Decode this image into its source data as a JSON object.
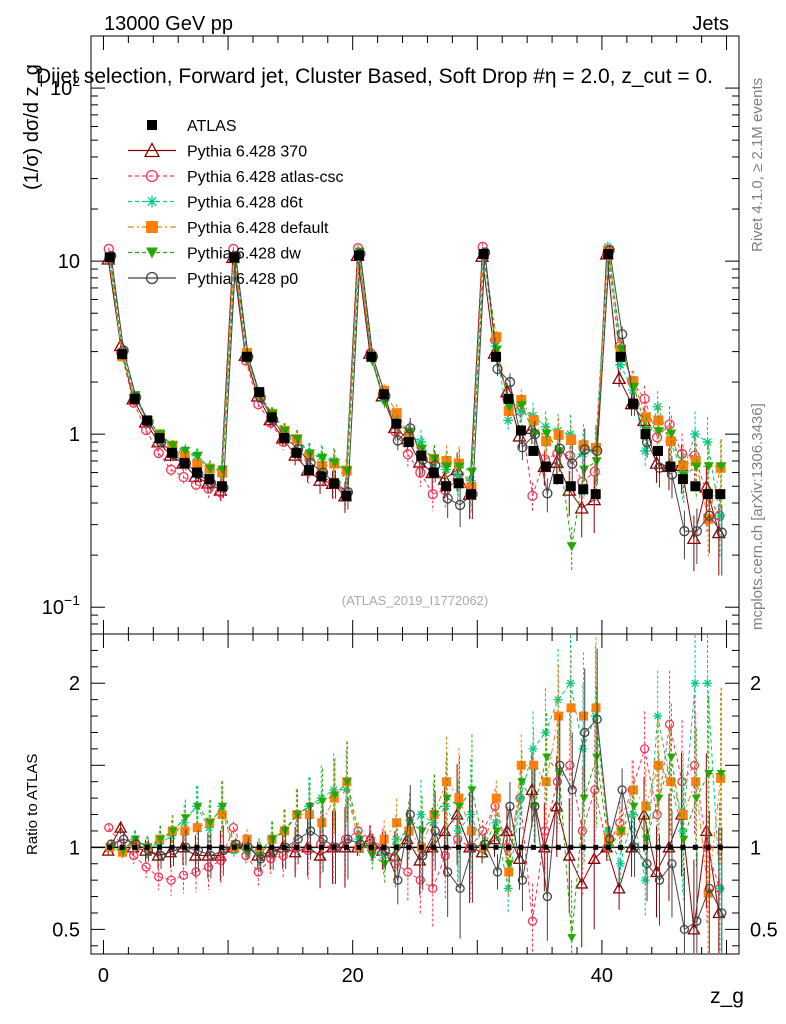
{
  "header": {
    "energy_label": "13000 GeV pp",
    "process_label": "Jets",
    "plot_title": "Dijet selection, Forward jet, Cluster Based, Soft Drop #η = 2.0, z_cut = 0.",
    "side_rivet": "Rivet 4.1.0, ≥ 2.1M events",
    "side_mcplots": "mcplots.cern.ch [arXiv:1306.3436]",
    "analysis_id": "(ATLAS_2019_I1772062)"
  },
  "chart_data": {
    "type": "scatter",
    "title": "Dijet selection, Forward jet, Cluster Based, Soft Drop",
    "xlabel": "z_g",
    "ylabel": "(1/σ) dσ/d z_g",
    "ratio_ylabel": "Ratio to ATLAS",
    "xlim": [
      -1,
      51
    ],
    "ylim": [
      0.07,
      200
    ],
    "yscale": "log",
    "ratio_ylim": [
      0.35,
      2.3
    ],
    "x_ticks": [
      "0",
      "20",
      "40"
    ],
    "y_ticks": [
      "10^-1",
      "1",
      "10",
      "10^2"
    ],
    "ratio_ticks": [
      "0.5",
      "1",
      "2"
    ],
    "legend_location": "top-left",
    "x": [
      0.5,
      1.5,
      2.5,
      3.5,
      4.5,
      5.5,
      6.5,
      7.5,
      8.5,
      9.5,
      10.5,
      11.5,
      12.5,
      13.5,
      14.5,
      15.5,
      16.5,
      17.5,
      18.5,
      19.5,
      20.5,
      21.5,
      22.5,
      23.5,
      24.5,
      25.5,
      26.5,
      27.5,
      28.5,
      29.5,
      30.5,
      31.5,
      32.5,
      33.5,
      34.5,
      35.5,
      36.5,
      37.5,
      38.5,
      39.5,
      40.5,
      41.5,
      42.5,
      43.5,
      44.5,
      45.5,
      46.5,
      47.5,
      48.5,
      49.5
    ],
    "atlas": {
      "name": "ATLAS",
      "values": [
        10.5,
        2.9,
        1.6,
        1.2,
        0.95,
        0.78,
        0.68,
        0.6,
        0.55,
        0.5,
        10.5,
        2.8,
        1.75,
        1.25,
        0.95,
        0.78,
        0.62,
        0.57,
        0.52,
        0.44,
        10.8,
        2.8,
        1.7,
        1.15,
        0.9,
        0.75,
        0.6,
        0.5,
        0.52,
        0.45,
        11.0,
        2.8,
        1.6,
        1.05,
        0.8,
        0.65,
        0.55,
        0.5,
        0.48,
        0.45,
        11.0,
        2.8,
        1.5,
        1.0,
        0.8,
        0.65,
        0.55,
        0.5,
        0.45,
        0.45
      ]
    },
    "series": [
      {
        "name": "Pythia 6.428 370",
        "color": "#8b0000",
        "marker": "triangle-open",
        "dash": "solid",
        "ratio": [
          0.98,
          1.12,
          1.0,
          0.98,
          0.95,
          0.97,
          1.0,
          0.95,
          0.95,
          0.95,
          1.0,
          1.02,
          0.95,
          0.97,
          1.0,
          0.97,
          1.0,
          0.95,
          1.0,
          1.0,
          1.0,
          1.05,
          0.98,
          0.95,
          1.05,
          0.92,
          1.0,
          1.1,
          1.2,
          1.0,
          0.97,
          1.05,
          1.1,
          0.93,
          1.35,
          1.0,
          1.25,
          0.95,
          0.78,
          0.93,
          1.0,
          0.75,
          1.0,
          1.2,
          0.85,
          1.0,
          1.2,
          0.5,
          1.1,
          0.6
        ]
      },
      {
        "name": "Pythia 6.428 atlas-csc",
        "color": "#ff3355",
        "marker": "circle-open",
        "dash": "4,3",
        "ratio": [
          1.12,
          1.02,
          0.95,
          0.88,
          0.82,
          0.8,
          0.83,
          0.85,
          0.88,
          0.92,
          1.12,
          0.95,
          0.85,
          0.93,
          0.95,
          1.0,
          0.98,
          1.02,
          1.0,
          1.05,
          1.1,
          1.05,
          1.0,
          0.9,
          0.85,
          0.8,
          0.75,
          0.95,
          1.05,
          1.0,
          1.1,
          1.25,
          1.0,
          1.3,
          0.55,
          1.1,
          1.4,
          1.5,
          1.1,
          1.35,
          1.0,
          1.15,
          1.35,
          1.6,
          1.2,
          1.75,
          1.4,
          1.5,
          1.0,
          0.75
        ]
      },
      {
        "name": "Pythia 6.428 d6t",
        "color": "#00cc88",
        "marker": "star",
        "dash": "4,3",
        "ratio": [
          1.0,
          0.98,
          1.05,
          1.0,
          1.02,
          1.07,
          1.15,
          1.25,
          1.12,
          1.25,
          0.98,
          1.0,
          0.97,
          1.05,
          1.1,
          1.2,
          1.25,
          1.3,
          1.35,
          1.35,
          1.05,
          1.0,
          0.95,
          1.05,
          1.1,
          1.2,
          1.15,
          1.25,
          1.1,
          1.2,
          1.0,
          1.15,
          0.75,
          1.3,
          1.6,
          1.7,
          1.9,
          2.0,
          1.6,
          1.8,
          1.1,
          0.9,
          1.2,
          0.8,
          1.8,
          1.4,
          1.1,
          2.0,
          2.0,
          0.75
        ]
      },
      {
        "name": "Pythia 6.428 default",
        "color": "#ff7f0e",
        "marker": "square",
        "dash": "6,3,2,3",
        "ratio": [
          1.0,
          0.97,
          1.02,
          1.0,
          1.05,
          1.1,
          1.1,
          1.12,
          1.15,
          1.2,
          1.0,
          1.05,
          0.97,
          1.05,
          1.1,
          1.2,
          1.2,
          1.15,
          1.3,
          1.4,
          1.0,
          1.0,
          1.05,
          1.15,
          1.1,
          1.0,
          1.2,
          1.4,
          1.3,
          1.1,
          1.0,
          1.3,
          0.85,
          1.5,
          1.5,
          1.4,
          1.8,
          1.85,
          1.8,
          1.85,
          1.05,
          1.1,
          1.35,
          1.25,
          1.5,
          1.4,
          1.2,
          1.4,
          0.72,
          1.42
        ]
      },
      {
        "name": "Pythia 6.428 dw",
        "color": "#22aa00",
        "marker": "triangle-down",
        "dash": "4,3",
        "ratio": [
          1.0,
          0.98,
          1.05,
          1.0,
          1.05,
          1.1,
          1.18,
          1.25,
          1.15,
          1.25,
          1.0,
          0.97,
          0.95,
          1.05,
          1.1,
          1.2,
          1.25,
          1.28,
          1.32,
          1.4,
          1.05,
          0.95,
          0.9,
          1.0,
          1.15,
          1.1,
          1.2,
          1.3,
          1.25,
          1.35,
          1.0,
          1.1,
          0.9,
          1.4,
          1.25,
          1.55,
          1.45,
          0.45,
          1.3,
          1.55,
          1.0,
          1.1,
          1.25,
          1.05,
          1.3,
          1.55,
          1.05,
          1.3,
          1.45,
          1.45
        ]
      },
      {
        "name": "Pythia 6.428 p0",
        "color": "#444444",
        "marker": "circle-open",
        "dash": "solid",
        "ratio": [
          1.02,
          1.05,
          1.02,
          0.98,
          0.95,
          0.98,
          1.0,
          0.98,
          0.95,
          0.98,
          1.02,
          1.0,
          0.93,
          0.97,
          1.0,
          1.05,
          1.1,
          1.05,
          1.0,
          1.05,
          1.02,
          1.0,
          0.98,
          0.8,
          1.2,
          0.95,
          1.1,
          0.85,
          0.75,
          1.0,
          1.02,
          0.85,
          1.25,
          0.8,
          1.25,
          0.7,
          1.5,
          1.35,
          1.7,
          1.78,
          1.05,
          1.35,
          1.0,
          0.9,
          0.8,
          0.9,
          0.5,
          0.55,
          0.75,
          0.6
        ]
      }
    ]
  }
}
